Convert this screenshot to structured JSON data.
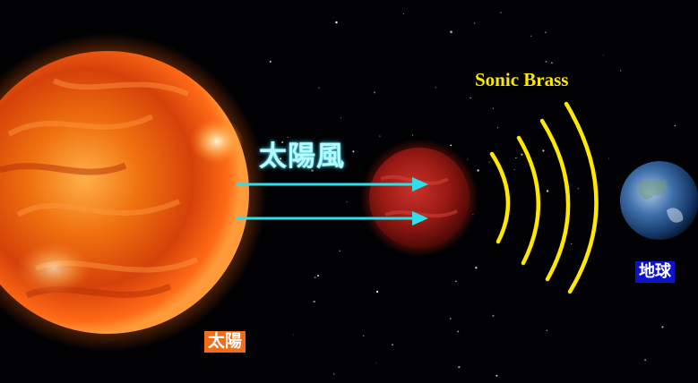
{
  "labels": {
    "sun": "太陽",
    "solar_wind": "太陽風",
    "sonic_brass": "Sonic Brass",
    "earth": "地球"
  },
  "colors": {
    "space": "#010103",
    "sun": "#f05a0a",
    "arrow": "#2fe0ec",
    "sonic_arc": "#ffe800",
    "sun_label_bg": "#f36c18",
    "earth_label_bg": "#0c13c8"
  }
}
